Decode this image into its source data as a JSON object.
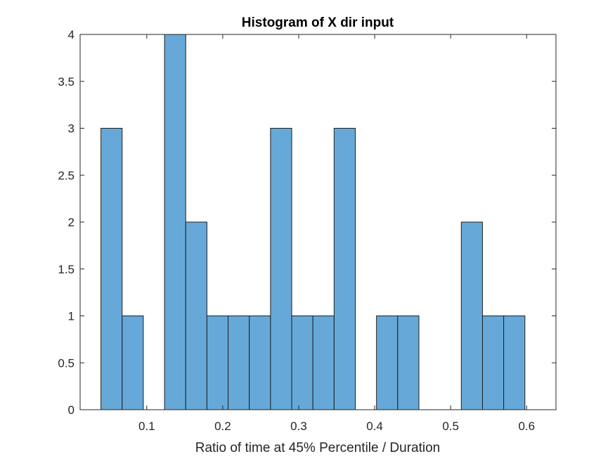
{
  "chart_data": {
    "type": "bar",
    "title": "Histogram of X dir input",
    "xlabel": "Ratio of time at 45% Percentile / Duration",
    "ylabel": "",
    "xlim": [
      0.0123,
      0.6386
    ],
    "ylim": [
      0,
      4
    ],
    "xticks": [
      0.1,
      0.2,
      0.3,
      0.4,
      0.5,
      0.6
    ],
    "xtick_labels": [
      "0.1",
      "0.2",
      "0.3",
      "0.4",
      "0.5",
      "0.6"
    ],
    "yticks": [
      0,
      0.5,
      1,
      1.5,
      2,
      2.5,
      3,
      3.5,
      4
    ],
    "ytick_labels": [
      "0",
      "0.5",
      "1",
      "1.5",
      "2",
      "2.5",
      "3",
      "3.5",
      "4"
    ],
    "bin_edges": [
      0.0397,
      0.0676,
      0.0955,
      0.1234,
      0.1513,
      0.1792,
      0.2071,
      0.235,
      0.2629,
      0.2908,
      0.3187,
      0.3466,
      0.3745,
      0.4024,
      0.4303,
      0.4582,
      0.4861,
      0.514,
      0.5419,
      0.5698,
      0.5977
    ],
    "values": [
      3,
      1,
      0,
      4,
      2,
      1,
      1,
      1,
      3,
      1,
      1,
      3,
      0,
      1,
      1,
      0,
      0,
      2,
      1,
      1
    ],
    "bar_color": "#66a9d9",
    "edge_color": "#1f1f1f",
    "grid": false
  }
}
